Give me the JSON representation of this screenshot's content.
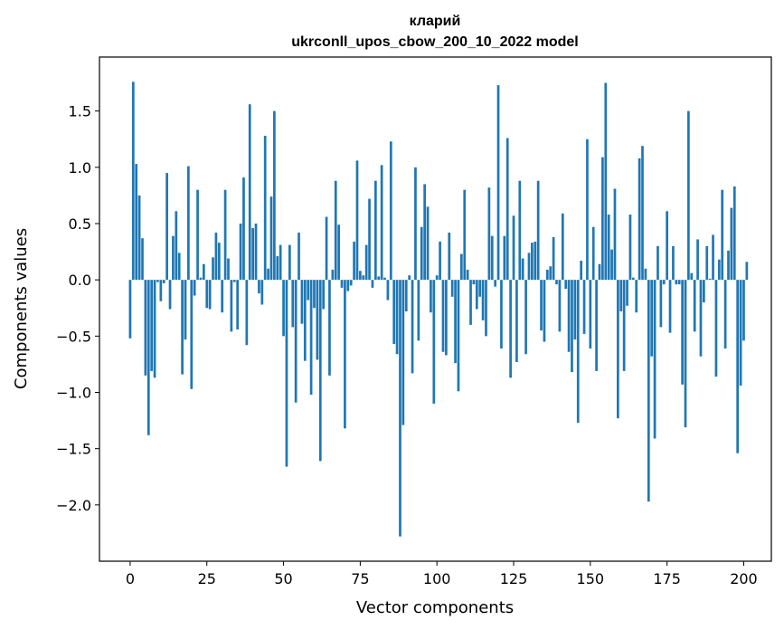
{
  "chart_data": {
    "type": "bar",
    "title": "кларий",
    "subtitle": "ukrconll_upos_cbow_200_10_2022 model",
    "xlabel": "Vector components",
    "ylabel": "Components values",
    "xlim": [
      -10,
      209
    ],
    "ylim": [
      -2.5,
      1.98
    ],
    "xticks": [
      0,
      25,
      50,
      75,
      100,
      125,
      150,
      175,
      200
    ],
    "yticks": [
      -2.0,
      -1.5,
      -1.0,
      -0.5,
      0.0,
      0.5,
      1.0,
      1.5
    ],
    "ytick_labels": [
      "−2.0",
      "−1.5",
      "−1.0",
      "−0.5",
      "0.0",
      "0.5",
      "1.0",
      "1.5"
    ],
    "grid": false,
    "bar_color": "#1f77b4",
    "values": [
      -0.52,
      1.76,
      1.03,
      0.75,
      0.37,
      -0.85,
      -1.38,
      -0.81,
      -0.87,
      -0.02,
      -0.19,
      -0.03,
      0.95,
      -0.26,
      0.39,
      0.61,
      0.24,
      -0.84,
      -0.53,
      1.01,
      -0.97,
      -0.14,
      0.8,
      0.02,
      0.14,
      -0.25,
      -0.26,
      0.2,
      0.42,
      0.33,
      -0.29,
      0.8,
      0.19,
      -0.46,
      -0.02,
      -0.44,
      0.5,
      0.91,
      -0.58,
      1.56,
      0.46,
      0.5,
      -0.12,
      -0.22,
      1.28,
      0.1,
      0.74,
      1.5,
      0.21,
      0.31,
      -0.5,
      -1.66,
      0.31,
      -0.42,
      -1.09,
      0.42,
      -0.39,
      -0.72,
      -0.18,
      -1.02,
      -0.25,
      -0.71,
      -1.61,
      -0.26,
      0.56,
      -0.85,
      0.09,
      0.88,
      0.49,
      -0.07,
      -1.32,
      -0.1,
      -0.05,
      0.34,
      1.06,
      0.08,
      0.04,
      0.31,
      0.72,
      -0.07,
      0.88,
      0.03,
      1.02,
      0.02,
      -0.18,
      1.23,
      -0.57,
      -0.66,
      -2.28,
      -1.29,
      -0.28,
      0.04,
      -0.83,
      1.0,
      -0.54,
      0.47,
      0.85,
      0.65,
      -0.29,
      -1.1,
      0.04,
      0.34,
      -0.64,
      -0.67,
      0.42,
      -0.15,
      -0.74,
      -0.99,
      0.23,
      0.8,
      0.09,
      -0.4,
      -0.04,
      -0.26,
      -0.15,
      -0.36,
      -0.5,
      0.82,
      0.39,
      -0.06,
      1.73,
      -0.61,
      0.39,
      1.26,
      -0.87,
      0.57,
      -0.73,
      0.88,
      0.19,
      -0.66,
      0.24,
      0.33,
      0.34,
      0.88,
      -0.45,
      -0.55,
      0.09,
      0.12,
      0.38,
      -0.04,
      -0.46,
      0.59,
      -0.08,
      -0.64,
      -0.82,
      -0.53,
      -1.27,
      0.17,
      -0.48,
      1.25,
      -0.61,
      0.47,
      -0.81,
      0.14,
      1.09,
      1.75,
      0.58,
      0.27,
      0.81,
      -1.23,
      -0.28,
      -0.81,
      -0.23,
      0.58,
      0.02,
      -0.29,
      1.08,
      1.19,
      0.1,
      -1.97,
      -0.68,
      -1.41,
      0.3,
      -0.42,
      -0.04,
      0.61,
      -0.47,
      0.3,
      -0.04,
      -0.04,
      -0.93,
      -1.31,
      1.5,
      0.06,
      -0.46,
      0.36,
      -0.68,
      -0.2,
      0.3,
      0.01,
      0.4,
      -0.86,
      0.18,
      0.8,
      -0.61,
      0.26,
      0.64,
      0.83,
      -1.54,
      -0.94,
      -0.54,
      0.16
    ]
  }
}
